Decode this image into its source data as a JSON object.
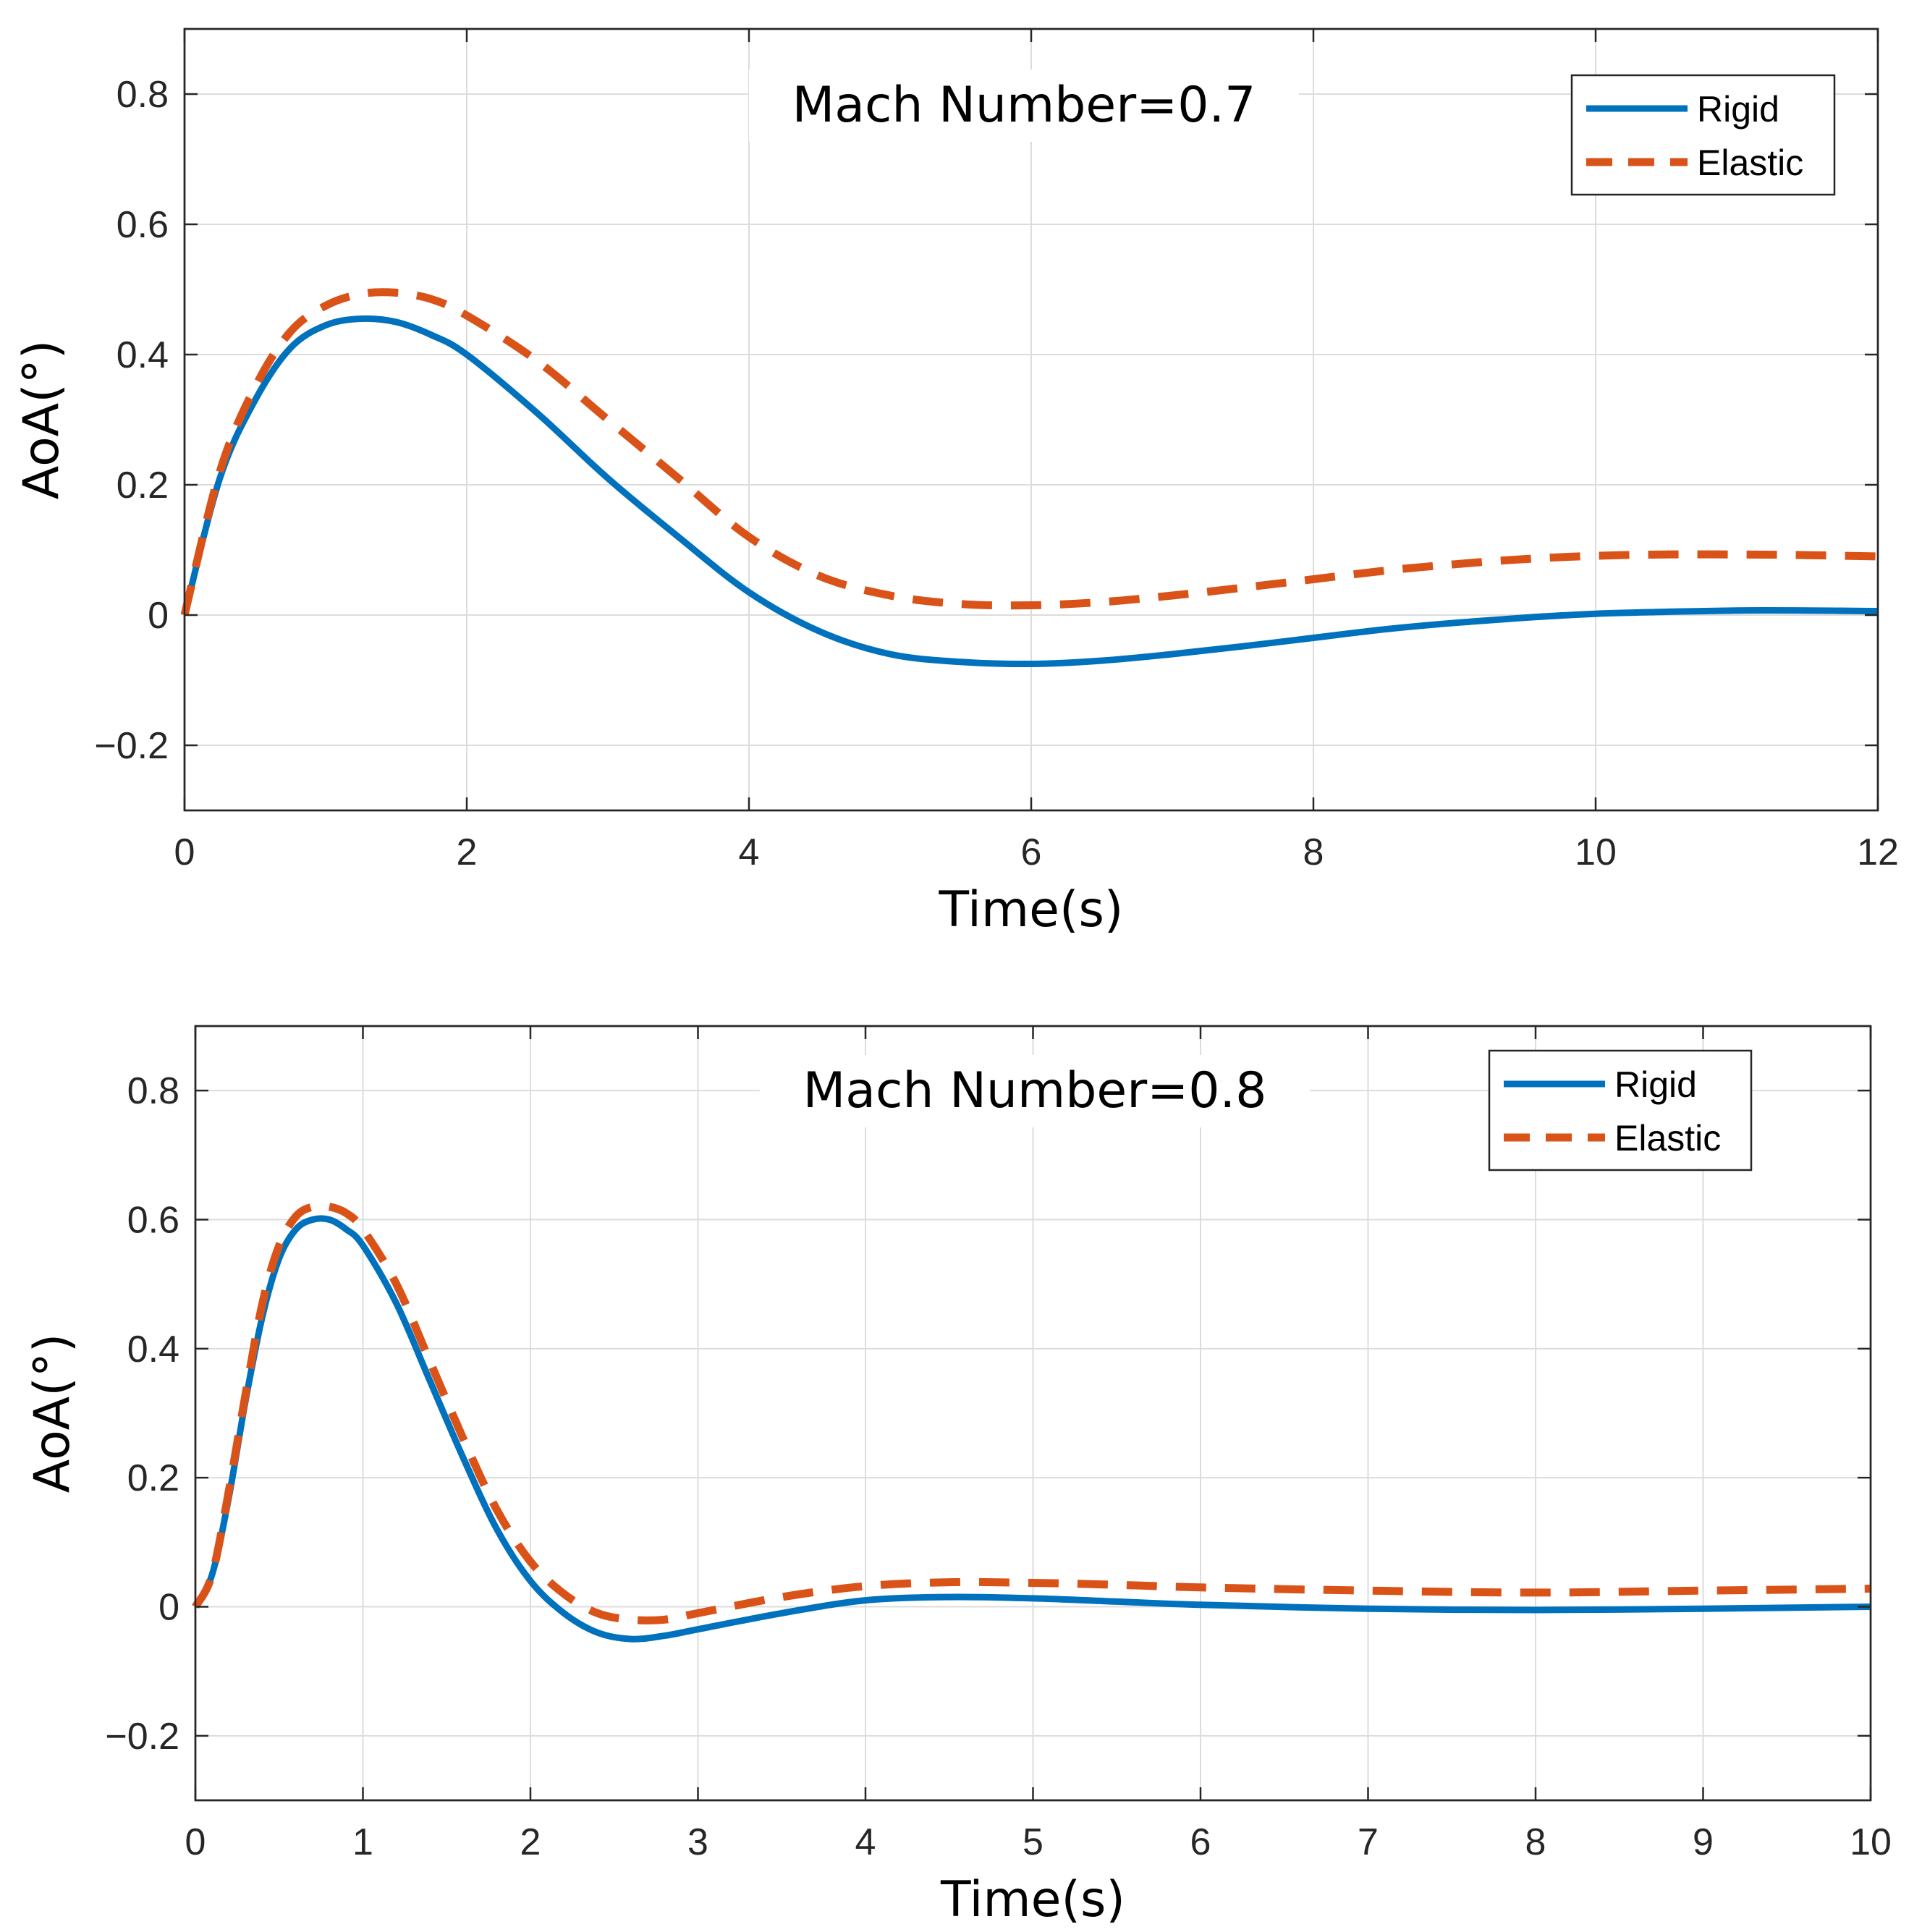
{
  "chart_data": [
    {
      "type": "line",
      "annotation": "Mach Number=0.7",
      "xlabel": "Time(s)",
      "ylabel": "AoA(°)",
      "xlim": [
        0,
        12
      ],
      "ylim": [
        -0.3,
        0.9
      ],
      "xticks": [
        0,
        2,
        4,
        6,
        8,
        10,
        12
      ],
      "xtick_labels": [
        "0",
        "2",
        "4",
        "6",
        "8",
        "10",
        "12"
      ],
      "yticks": [
        -0.2,
        0,
        0.2,
        0.4,
        0.6,
        0.8
      ],
      "ytick_labels": [
        "−0.2",
        "0",
        "0.2",
        "0.4",
        "0.6",
        "0.8"
      ],
      "grid": true,
      "legend_position": "top-right",
      "series": [
        {
          "name": "Rigid",
          "color": "#0072BD",
          "style": "solid",
          "x": [
            0,
            0.25,
            0.5,
            0.75,
            1.0,
            1.25,
            1.5,
            1.75,
            2.0,
            2.5,
            3.0,
            3.5,
            4.0,
            4.5,
            5.0,
            5.5,
            6.0,
            6.5,
            7.0,
            7.5,
            8.0,
            8.5,
            9.0,
            9.5,
            10.0,
            10.5,
            11.0,
            11.5,
            12.0
          ],
          "y": [
            0,
            0.21,
            0.33,
            0.41,
            0.445,
            0.455,
            0.45,
            0.43,
            0.4,
            0.31,
            0.21,
            0.12,
            0.035,
            -0.025,
            -0.06,
            -0.072,
            -0.075,
            -0.07,
            -0.06,
            -0.048,
            -0.035,
            -0.022,
            -0.012,
            -0.004,
            0.002,
            0.005,
            0.007,
            0.007,
            0.006
          ]
        },
        {
          "name": "Elastic",
          "color": "#D95319",
          "style": "dashed",
          "x": [
            0,
            0.25,
            0.5,
            0.75,
            1.0,
            1.25,
            1.5,
            1.75,
            2.0,
            2.5,
            3.0,
            3.5,
            4.0,
            4.5,
            5.0,
            5.5,
            6.0,
            6.5,
            7.0,
            7.5,
            8.0,
            8.5,
            9.0,
            9.5,
            10.0,
            10.5,
            11.0,
            11.5,
            12.0
          ],
          "y": [
            0,
            0.22,
            0.35,
            0.435,
            0.475,
            0.493,
            0.495,
            0.485,
            0.46,
            0.39,
            0.3,
            0.21,
            0.12,
            0.06,
            0.03,
            0.017,
            0.015,
            0.02,
            0.03,
            0.042,
            0.055,
            0.068,
            0.078,
            0.086,
            0.091,
            0.093,
            0.093,
            0.092,
            0.09
          ]
        }
      ]
    },
    {
      "type": "line",
      "annotation": "Mach Number=0.8",
      "xlabel": "Time(s)",
      "ylabel": "AoA(°)",
      "xlim": [
        0,
        10
      ],
      "ylim": [
        -0.3,
        0.9
      ],
      "xticks": [
        0,
        1,
        2,
        3,
        4,
        5,
        6,
        7,
        8,
        9,
        10
      ],
      "xtick_labels": [
        "0",
        "1",
        "2",
        "3",
        "4",
        "5",
        "6",
        "7",
        "8",
        "9",
        "10"
      ],
      "yticks": [
        -0.2,
        0,
        0.2,
        0.4,
        0.6,
        0.8
      ],
      "ytick_labels": [
        "−0.2",
        "0",
        "0.2",
        "0.4",
        "0.6",
        "0.8"
      ],
      "grid": true,
      "legend_position": "top-right",
      "series": [
        {
          "name": "Rigid",
          "color": "#0072BD",
          "style": "solid",
          "x": [
            0,
            0.1,
            0.2,
            0.3,
            0.4,
            0.5,
            0.6,
            0.7,
            0.8,
            0.9,
            1.0,
            1.2,
            1.4,
            1.6,
            1.8,
            2.0,
            2.2,
            2.4,
            2.6,
            2.8,
            3.0,
            3.5,
            4.0,
            4.5,
            5.0,
            5.5,
            6.0,
            7.0,
            8.0,
            9.0,
            10.0
          ],
          "y": [
            0,
            0.05,
            0.17,
            0.32,
            0.45,
            0.54,
            0.585,
            0.6,
            0.6,
            0.585,
            0.56,
            0.47,
            0.35,
            0.23,
            0.12,
            0.04,
            -0.01,
            -0.04,
            -0.05,
            -0.045,
            -0.035,
            -0.01,
            0.01,
            0.015,
            0.013,
            0.008,
            0.003,
            -0.003,
            -0.005,
            -0.003,
            0.0
          ]
        },
        {
          "name": "Elastic",
          "color": "#D95319",
          "style": "dashed",
          "x": [
            0,
            0.1,
            0.2,
            0.3,
            0.4,
            0.5,
            0.6,
            0.7,
            0.8,
            0.9,
            1.0,
            1.2,
            1.4,
            1.6,
            1.8,
            2.0,
            2.2,
            2.4,
            2.6,
            2.8,
            3.0,
            3.5,
            4.0,
            4.5,
            5.0,
            5.5,
            6.0,
            7.0,
            8.0,
            9.0,
            10.0
          ],
          "y": [
            0,
            0.05,
            0.18,
            0.33,
            0.47,
            0.56,
            0.605,
            0.62,
            0.62,
            0.61,
            0.585,
            0.5,
            0.38,
            0.26,
            0.15,
            0.07,
            0.02,
            -0.01,
            -0.02,
            -0.02,
            -0.01,
            0.015,
            0.032,
            0.038,
            0.037,
            0.034,
            0.03,
            0.025,
            0.022,
            0.025,
            0.028
          ]
        }
      ]
    }
  ]
}
